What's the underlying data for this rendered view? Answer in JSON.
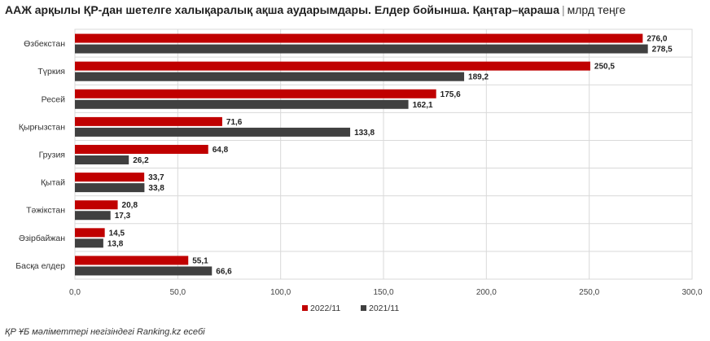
{
  "title": "ААЖ арқылы ҚР-дан шетелге халықаралық ақша аударымдары. Елдер бойынша. Қаңтар–қараша",
  "unit": "млрд теңге",
  "source": "ҚР ҰБ мәліметтері негізіндегі Ranking.kz есебі",
  "chart_data": {
    "type": "bar",
    "orientation": "horizontal",
    "categories": [
      "Өзбекстан",
      "Түркия",
      "Ресей",
      "Қырғызстан",
      "Грузия",
      "Қытай",
      "Тәжікстан",
      "Әзірбайжан",
      "Басқа елдер"
    ],
    "series": [
      {
        "name": "2022/11",
        "color": "#c00000",
        "values": [
          276.0,
          250.5,
          175.6,
          71.6,
          64.8,
          33.7,
          20.8,
          14.5,
          55.1
        ]
      },
      {
        "name": "2021/11",
        "color": "#404040",
        "values": [
          278.5,
          189.2,
          162.1,
          133.8,
          26.2,
          33.8,
          17.3,
          13.8,
          66.6
        ]
      }
    ],
    "value_labels": [
      [
        "276,0",
        "250,5",
        "175,6",
        "71,6",
        "64,8",
        "33,7",
        "20,8",
        "14,5",
        "55,1"
      ],
      [
        "278,5",
        "189,2",
        "162,1",
        "133,8",
        "26,2",
        "33,8",
        "17,3",
        "13,8",
        "66,6"
      ]
    ],
    "xlim": [
      0,
      300
    ],
    "xticks": [
      0,
      50,
      100,
      150,
      200,
      250,
      300
    ],
    "xtick_labels": [
      "0,0",
      "50,0",
      "100,0",
      "150,0",
      "200,0",
      "250,0",
      "300,0"
    ],
    "grid": true,
    "legend_position": "bottom"
  }
}
